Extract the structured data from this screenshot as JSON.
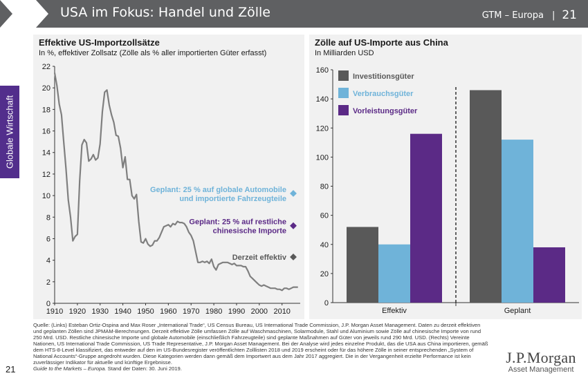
{
  "header": {
    "title": "USA im Fokus: Handel und Zölle",
    "section": "GTM – Europa",
    "page": "21"
  },
  "side_tab": {
    "label": "Globale Wirtschaft"
  },
  "left_panel": {
    "title": "Effektive US-Importzollsätze",
    "subtitle": "In %, effektiver Zollsatz (Zölle als % aller importierten Güter erfasst)",
    "annotations": [
      {
        "text_line1": "Geplant: 25 % auf globale Automobile",
        "text_line2": "und importierte Fahrzeugteile",
        "value": 10.2,
        "color": "#6fb3d9"
      },
      {
        "text_line1": "Geplant: 25 % auf restliche",
        "text_line2": "chinesische Importe",
        "value": 7.2,
        "color": "#5b2a86"
      },
      {
        "text_line1": "Derzeit effektiv",
        "text_line2": "",
        "value": 4.3,
        "color": "#595959"
      }
    ]
  },
  "right_panel": {
    "title": "Zölle auf US-Importe aus China",
    "subtitle": "In Milliarden USD"
  },
  "chart_data": [
    {
      "type": "line",
      "title": "Effektive US-Importzollsätze",
      "subtitle": "In %, effektiver Zollsatz (Zölle als % aller importierten Güter erfasst)",
      "xlim": [
        1910,
        2018
      ],
      "ylim": [
        0,
        22
      ],
      "xticks": [
        "1910",
        "1920",
        "1930",
        "1940",
        "1950",
        "1960",
        "1970",
        "1980",
        "1990",
        "2000",
        "2010"
      ],
      "yticks": [
        "0",
        "2",
        "4",
        "6",
        "8",
        "10",
        "12",
        "14",
        "16",
        "18",
        "20",
        "22"
      ],
      "line_color": "#7f7f7f",
      "series": [
        {
          "x": [
            1910,
            1911,
            1912,
            1913,
            1914,
            1915,
            1916,
            1917,
            1918,
            1919,
            1920,
            1921,
            1922,
            1923,
            1924,
            1925,
            1926,
            1927,
            1928,
            1929,
            1930,
            1931,
            1932,
            1933,
            1934,
            1935,
            1936,
            1937,
            1938,
            1939,
            1940,
            1941,
            1942,
            1943,
            1944,
            1945,
            1946,
            1947,
            1948,
            1949,
            1950,
            1951,
            1952,
            1953,
            1954,
            1955,
            1956,
            1957,
            1958,
            1959,
            1960,
            1961,
            1962,
            1963,
            1964,
            1965,
            1966,
            1967,
            1968,
            1969,
            1970,
            1971,
            1972,
            1973,
            1974,
            1975,
            1976,
            1977,
            1978,
            1979,
            1980,
            1981,
            1982,
            1983,
            1984,
            1985,
            1986,
            1987,
            1988,
            1989,
            1990,
            1991,
            1992,
            1993,
            1994,
            1995,
            1996,
            1997,
            1998,
            1999,
            2000,
            2001,
            2002,
            2003,
            2004,
            2005,
            2006,
            2007,
            2008,
            2009,
            2010,
            2011,
            2012,
            2013,
            2014,
            2015,
            2016,
            2017
          ],
          "y": [
            21.4,
            20.2,
            18.5,
            17.5,
            15.0,
            12.5,
            9.6,
            8.0,
            5.8,
            6.2,
            6.4,
            11.4,
            14.7,
            15.2,
            14.9,
            13.2,
            13.4,
            13.8,
            13.3,
            13.5,
            14.8,
            17.8,
            19.6,
            19.8,
            18.4,
            17.5,
            16.8,
            15.6,
            15.5,
            14.4,
            12.6,
            13.6,
            11.5,
            11.5,
            10.0,
            9.7,
            10.1,
            7.6,
            5.7,
            5.6,
            6.0,
            5.5,
            5.3,
            5.4,
            5.8,
            5.8,
            6.1,
            6.6,
            7.1,
            7.2,
            7.3,
            7.1,
            7.4,
            7.3,
            7.6,
            7.5,
            7.5,
            7.4,
            7.1,
            6.6,
            6.3,
            5.8,
            4.8,
            3.8,
            3.8,
            3.9,
            3.8,
            3.9,
            3.7,
            4.1,
            3.4,
            3.1,
            3.6,
            3.7,
            3.8,
            3.8,
            3.8,
            3.7,
            3.6,
            3.7,
            3.5,
            3.5,
            3.5,
            3.4,
            3.4,
            3.0,
            2.5,
            2.3,
            2.1,
            1.9,
            1.7,
            1.6,
            1.7,
            1.6,
            1.5,
            1.4,
            1.4,
            1.4,
            1.3,
            1.3,
            1.2,
            1.4,
            1.4,
            1.3,
            1.4,
            1.5,
            1.5,
            1.5
          ]
        }
      ],
      "markers": [
        {
          "label": "Geplant: 25 % auf globale Automobile und importierte Fahrzeugteile",
          "y": 10.2,
          "color": "#6fb3d9"
        },
        {
          "label": "Geplant: 25 % auf restliche chinesische Importe",
          "y": 7.2,
          "color": "#5b2a86"
        },
        {
          "label": "Derzeit effektiv",
          "y": 4.3,
          "color": "#595959"
        }
      ]
    },
    {
      "type": "bar",
      "title": "Zölle auf US-Importe aus China",
      "subtitle": "In Milliarden USD",
      "categories": [
        "Effektiv",
        "Geplant"
      ],
      "ylim": [
        0,
        160
      ],
      "yticks": [
        "0",
        "20",
        "40",
        "60",
        "80",
        "100",
        "120",
        "140",
        "160"
      ],
      "legend": "top-left",
      "series": [
        {
          "name": "Investitionsgüter",
          "values": [
            52,
            146
          ],
          "color": "#595959"
        },
        {
          "name": "Verbrauchsgüter",
          "values": [
            40,
            112
          ],
          "color": "#6fb3d9"
        },
        {
          "name": "Vorleistungsgüter",
          "values": [
            116,
            38
          ],
          "color": "#5b2a86"
        }
      ]
    }
  ],
  "footnote": {
    "text": "Quelle: (Links) Esteban Ortiz-Ospina and Max Roser „International Trade“, US Census Bureau, US International Trade Commission, J.P. Morgan Asset Management. Daten zu derzeit effektiven und geplanten Zöllen sind JPMAM-Berechnungen. Derzeit effektive Zölle umfassen Zölle auf Waschmaschinen, Solarmodule, Stahl und Aluminium sowie Zölle auf chinesische Importe von rund 250 Mrd. USD. Restliche chinesische Importe und globale Automobile (einschließlich Fahrzeugteile) sind geplante Maßnahmen auf Güter von jeweils rund 290 Mrd. USD. (Rechts) Vereinte Nationen, US International Trade Commission, US Trade Representative, J.P. Morgan Asset Management. Bei der Analyse wird jedes einzelne Produkt, das die USA aus China importieren, gemäß dem HTS-8-Level klassifiziert, das entweder auf den im US-Bundesregister veröffentlichten Zolllisten 2018 und 2019 erscheint oder für das höhere Zölle in seiner entsprechenden „System of National Accounts“-Gruppe angedroht wurden. Diese Kategorien werden dann gemäß dem Importwert aus dem Jahr 2017 aggregiert. Die in der Vergangenheit erzielte Performance ist kein zuverlässiger Indikator für aktuelle und künftige Ergebnisse.",
    "guide": "Guide to the Markets – Europa.",
    "date": " Stand der Daten: 30. Juni 2019."
  },
  "page_number": "21",
  "logo": {
    "main": "J.P.Morgan",
    "sub": "Asset Management"
  }
}
